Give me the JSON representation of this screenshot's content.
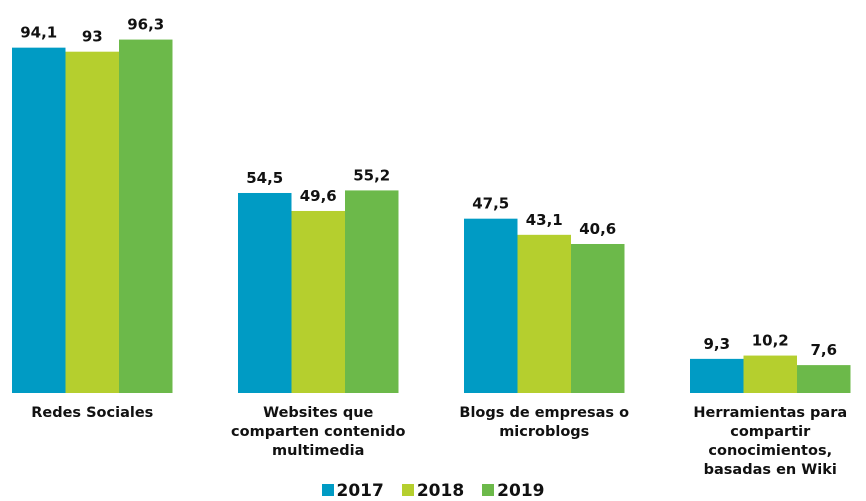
{
  "chart_data": {
    "type": "bar",
    "categories": [
      "Redes Sociales",
      "Websites que comparten contenido multimedia",
      "Blogs de empresas o microblogs",
      "Herramientas para compartir conocimientos, basadas en Wiki"
    ],
    "series": [
      {
        "name": "2017",
        "color": "#009bc4",
        "values": [
          94.1,
          54.5,
          47.5,
          9.3
        ],
        "value_labels": [
          "94,1",
          "54,5",
          "47,5",
          "9,3"
        ]
      },
      {
        "name": "2018",
        "color": "#b5cf2e",
        "values": [
          93,
          49.6,
          43.1,
          10.2
        ],
        "value_labels": [
          "93",
          "49,6",
          "43,1",
          "10,2"
        ]
      },
      {
        "name": "2019",
        "color": "#6cb94a",
        "values": [
          96.3,
          55.2,
          40.6,
          7.6
        ],
        "value_labels": [
          "96,3",
          "55,2",
          "40,6",
          "7,6"
        ]
      }
    ],
    "ylim": [
      0,
      100
    ],
    "legend": "bottom"
  }
}
